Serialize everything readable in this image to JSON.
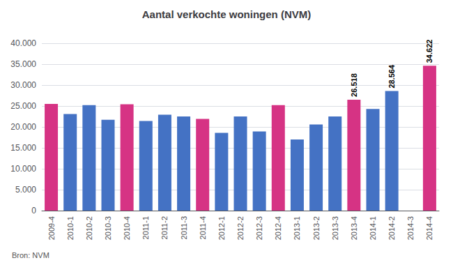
{
  "chart_data": {
    "type": "bar",
    "title": "Aantal verkochte woningen (NVM)",
    "source": "Bron: NVM",
    "categories": [
      "2009-4",
      "2010-1",
      "2010-2",
      "2010-3",
      "2010-4",
      "2011-1",
      "2011-2",
      "2011-3",
      "2011-4",
      "2012-1",
      "2012-2",
      "2012-3",
      "2012-4",
      "2013-1",
      "2013-2",
      "2013-3",
      "2013-4",
      "2014-1",
      "2014-2",
      "2014-3",
      "2014-4"
    ],
    "values": [
      25500,
      23100,
      25200,
      21700,
      25400,
      21400,
      22900,
      22500,
      21900,
      18600,
      22500,
      18900,
      25200,
      17000,
      20600,
      22500,
      26518,
      24300,
      28564,
      0,
      34622
    ],
    "colors": [
      "#d63384",
      "#4472c4",
      "#4472c4",
      "#4472c4",
      "#d63384",
      "#4472c4",
      "#4472c4",
      "#4472c4",
      "#d63384",
      "#4472c4",
      "#4472c4",
      "#4472c4",
      "#d63384",
      "#4472c4",
      "#4472c4",
      "#4472c4",
      "#d63384",
      "#4472c4",
      "#4472c4",
      "#4472c4",
      "#d63384"
    ],
    "annotations": [
      {
        "category": "2013-4",
        "value": 26518,
        "label": "26.518"
      },
      {
        "category": "2014-2",
        "value": 28564,
        "label": "28.564"
      },
      {
        "category": "2014-4",
        "value": 34622,
        "label": "34.622"
      }
    ],
    "ylim": [
      0,
      40000
    ],
    "yticks": [
      0,
      {
        "value": 5000,
        "label": "5.000"
      },
      {
        "value": 10000,
        "label": "10.000"
      },
      {
        "value": 15000,
        "label": "15.000"
      },
      {
        "value": 20000,
        "label": "20.000"
      },
      {
        "value": 25000,
        "label": "25.000"
      },
      {
        "value": 30000,
        "label": "30.000"
      },
      {
        "value": 35000,
        "label": "35.000"
      },
      {
        "value": 40000,
        "label": "40.000"
      }
    ],
    "grid": true
  }
}
